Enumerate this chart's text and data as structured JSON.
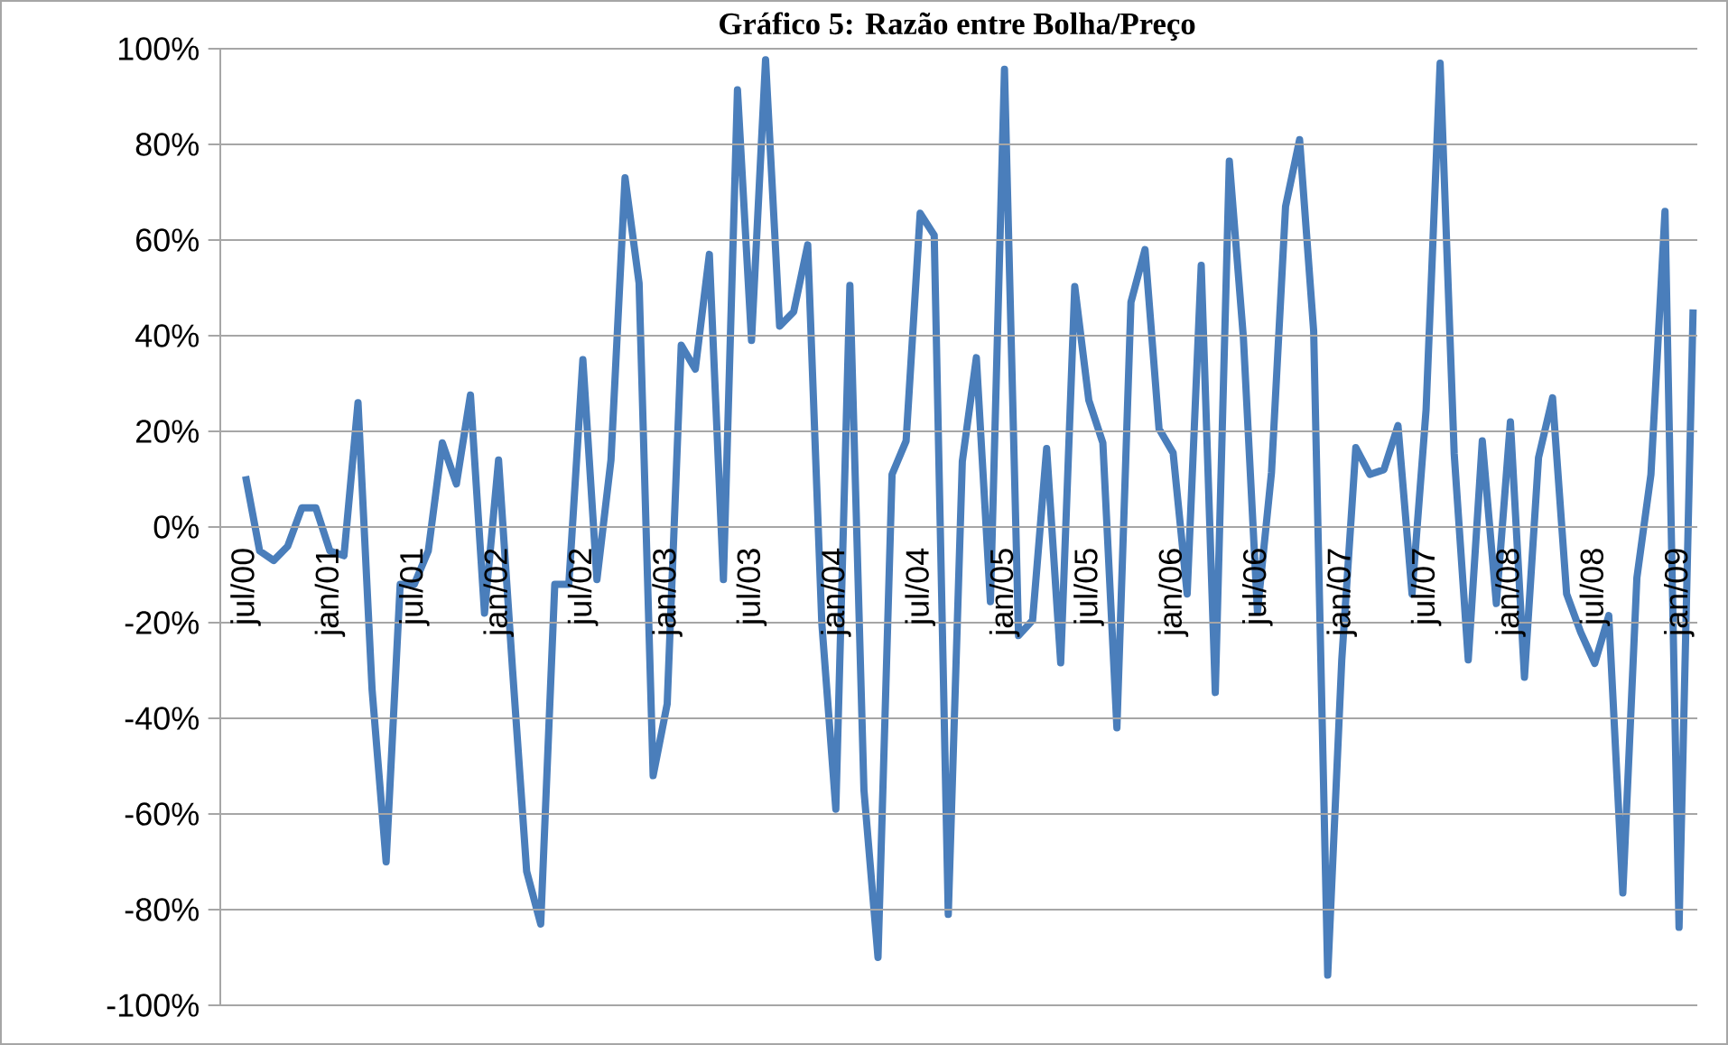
{
  "chart_data": {
    "type": "line",
    "title": "Gráfico 5: Razão entre Bolha/Preço",
    "categories": [
      "jul/00",
      null,
      null,
      null,
      null,
      null,
      "jan/01",
      null,
      null,
      null,
      null,
      null,
      "jul/01",
      null,
      null,
      null,
      null,
      null,
      "jan/02",
      null,
      null,
      null,
      null,
      null,
      "jul/02",
      null,
      null,
      null,
      null,
      null,
      "jan/03",
      null,
      null,
      null,
      null,
      null,
      "jul/03",
      null,
      null,
      null,
      null,
      null,
      "jan/04",
      null,
      null,
      null,
      null,
      null,
      "jul/04",
      null,
      null,
      null,
      null,
      null,
      "jan/05",
      null,
      null,
      null,
      null,
      null,
      "jul/05",
      null,
      null,
      null,
      null,
      null,
      "jan/06",
      null,
      null,
      null,
      null,
      null,
      "jul/06",
      null,
      null,
      null,
      null,
      null,
      "jan/07",
      null,
      null,
      null,
      null,
      null,
      "jul/07",
      null,
      null,
      null,
      null,
      null,
      "jan/08",
      null,
      null,
      null,
      null,
      null,
      "jul/08",
      null,
      null,
      null,
      null,
      null,
      "jan/09",
      null
    ],
    "series": [
      {
        "color": "#4a7ebb",
        "values": [
          10.6,
          -5,
          -7,
          -4,
          4,
          4,
          -5,
          -6,
          26,
          -34,
          -70,
          -12,
          -12,
          -5,
          17.6,
          9,
          27.6,
          -18,
          14,
          -30,
          -72,
          -83,
          -12,
          -12,
          35,
          -11,
          14,
          73,
          51,
          -52,
          -37,
          38,
          33,
          57,
          -11,
          91.4,
          39,
          97.7,
          42,
          45,
          59,
          -20,
          -59,
          50.5,
          -55,
          -90,
          11,
          18,
          65.6,
          61,
          -81,
          13.7,
          35.4,
          -15.6,
          95.7,
          -22.7,
          -19.5,
          16.4,
          -28.4,
          50.3,
          26.5,
          17.6,
          -42,
          47,
          58,
          20.5,
          15.5,
          -14,
          54.7,
          -34.6,
          76.5,
          39.6,
          -17.7,
          11.4,
          67,
          81,
          41,
          -93.7,
          -27.8,
          16.6,
          11,
          12,
          21.2,
          -14,
          24.5,
          97,
          15.3,
          -27.8,
          18,
          -16,
          22,
          -31.4,
          14.5,
          27,
          -14,
          -22,
          -28.5,
          -18.5,
          -76.5,
          -10.6,
          11,
          66,
          -83.7,
          45.5
        ]
      }
    ],
    "ylim": [
      -100,
      100
    ],
    "yticks": [
      {
        "value": -100,
        "label": "-100%"
      },
      {
        "value": -80,
        "label": "-80%"
      },
      {
        "value": -60,
        "label": "-60%"
      },
      {
        "value": -40,
        "label": "-40%"
      },
      {
        "value": -20,
        "label": "-20%"
      },
      {
        "value": 0,
        "label": "0%"
      },
      {
        "value": 20,
        "label": "20%"
      },
      {
        "value": 40,
        "label": "40%"
      },
      {
        "value": 60,
        "label": "60%"
      },
      {
        "value": 80,
        "label": "80%"
      },
      {
        "value": 100,
        "label": "100%"
      }
    ],
    "grid": "y"
  }
}
